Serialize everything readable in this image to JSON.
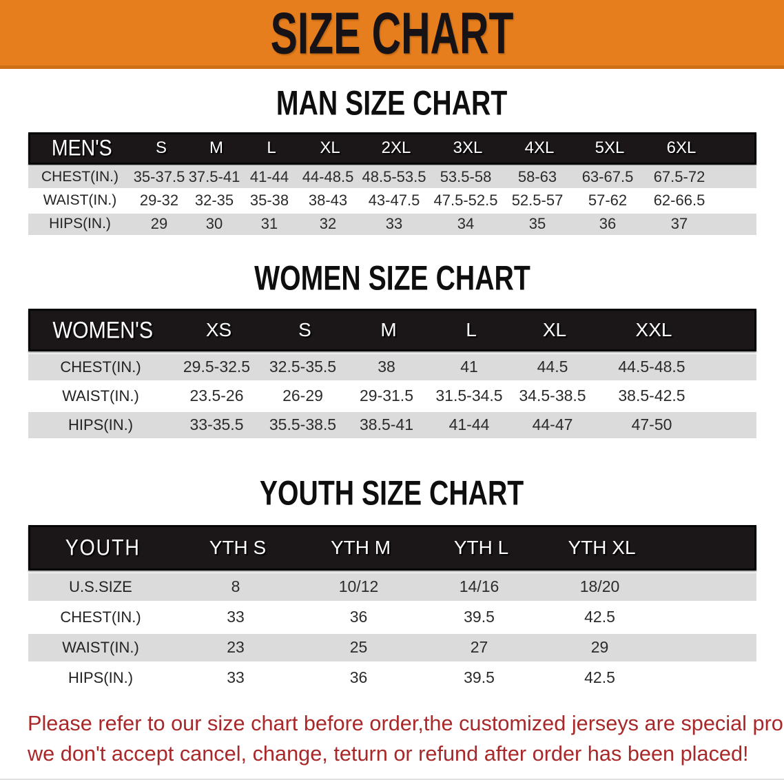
{
  "banner": {
    "title": "SIZE CHART",
    "bg_color": "#e67e1d",
    "text_color": "#161215"
  },
  "men": {
    "heading": "MAN SIZE CHART",
    "table_label": "MEN'S",
    "columns": [
      "S",
      "M",
      "L",
      "XL",
      "2XL",
      "3XL",
      "4XL",
      "5XL",
      "6XL"
    ],
    "rows": [
      {
        "label": "CHEST(IN.)",
        "values": [
          "35-37.5",
          "37.5-41",
          "41-44",
          "44-48.5",
          "48.5-53.5",
          "53.5-58",
          "58-63",
          "63-67.5",
          "67.5-72"
        ]
      },
      {
        "label": "WAIST(IN.)",
        "values": [
          "29-32",
          "32-35",
          "35-38",
          "38-43",
          "43-47.5",
          "47.5-52.5",
          "52.5-57",
          "57-62",
          "62-66.5"
        ]
      },
      {
        "label": "HIPS(IN.)",
        "values": [
          "29",
          "30",
          "31",
          "32",
          "33",
          "34",
          "35",
          "36",
          "37"
        ]
      }
    ]
  },
  "women": {
    "heading": "WOMEN SIZE CHART",
    "table_label": "WOMEN'S",
    "columns": [
      "XS",
      "S",
      "M",
      "L",
      "XL",
      "XXL"
    ],
    "rows": [
      {
        "label": "CHEST(IN.)",
        "values": [
          "29.5-32.5",
          "32.5-35.5",
          "38",
          "41",
          "44.5",
          "44.5-48.5"
        ]
      },
      {
        "label": "WAIST(IN.)",
        "values": [
          "23.5-26",
          "26-29",
          "29-31.5",
          "31.5-34.5",
          "34.5-38.5",
          "38.5-42.5"
        ]
      },
      {
        "label": "HIPS(IN.)",
        "values": [
          "33-35.5",
          "35.5-38.5",
          "38.5-41",
          "41-44",
          "44-47",
          "47-50"
        ]
      }
    ]
  },
  "youth": {
    "heading": "YOUTH SIZE CHART",
    "table_label": "YOUTH",
    "columns": [
      "YTH S",
      "YTH M",
      "YTH L",
      "YTH XL"
    ],
    "rows": [
      {
        "label": "U.S.SIZE",
        "values": [
          "8",
          "10/12",
          "14/16",
          "18/20"
        ]
      },
      {
        "label": "CHEST(IN.)",
        "values": [
          "33",
          "36",
          "39.5",
          "42.5"
        ]
      },
      {
        "label": "WAIST(IN.)",
        "values": [
          "23",
          "25",
          "27",
          "29"
        ]
      },
      {
        "label": "HIPS(IN.)",
        "values": [
          "33",
          "36",
          "39.5",
          "42.5"
        ]
      }
    ]
  },
  "disclaimer": {
    "line1": "Please refer to our size chart before order,the customized jerseys are special products,",
    "line2": "we don't accept cancel, change, teturn or refund after order has been placed!",
    "text_color": "#a9282a"
  },
  "colors": {
    "header_bar": "#1b1617",
    "row_alt": "#dbdbdb",
    "row_white": "#ffffff"
  }
}
